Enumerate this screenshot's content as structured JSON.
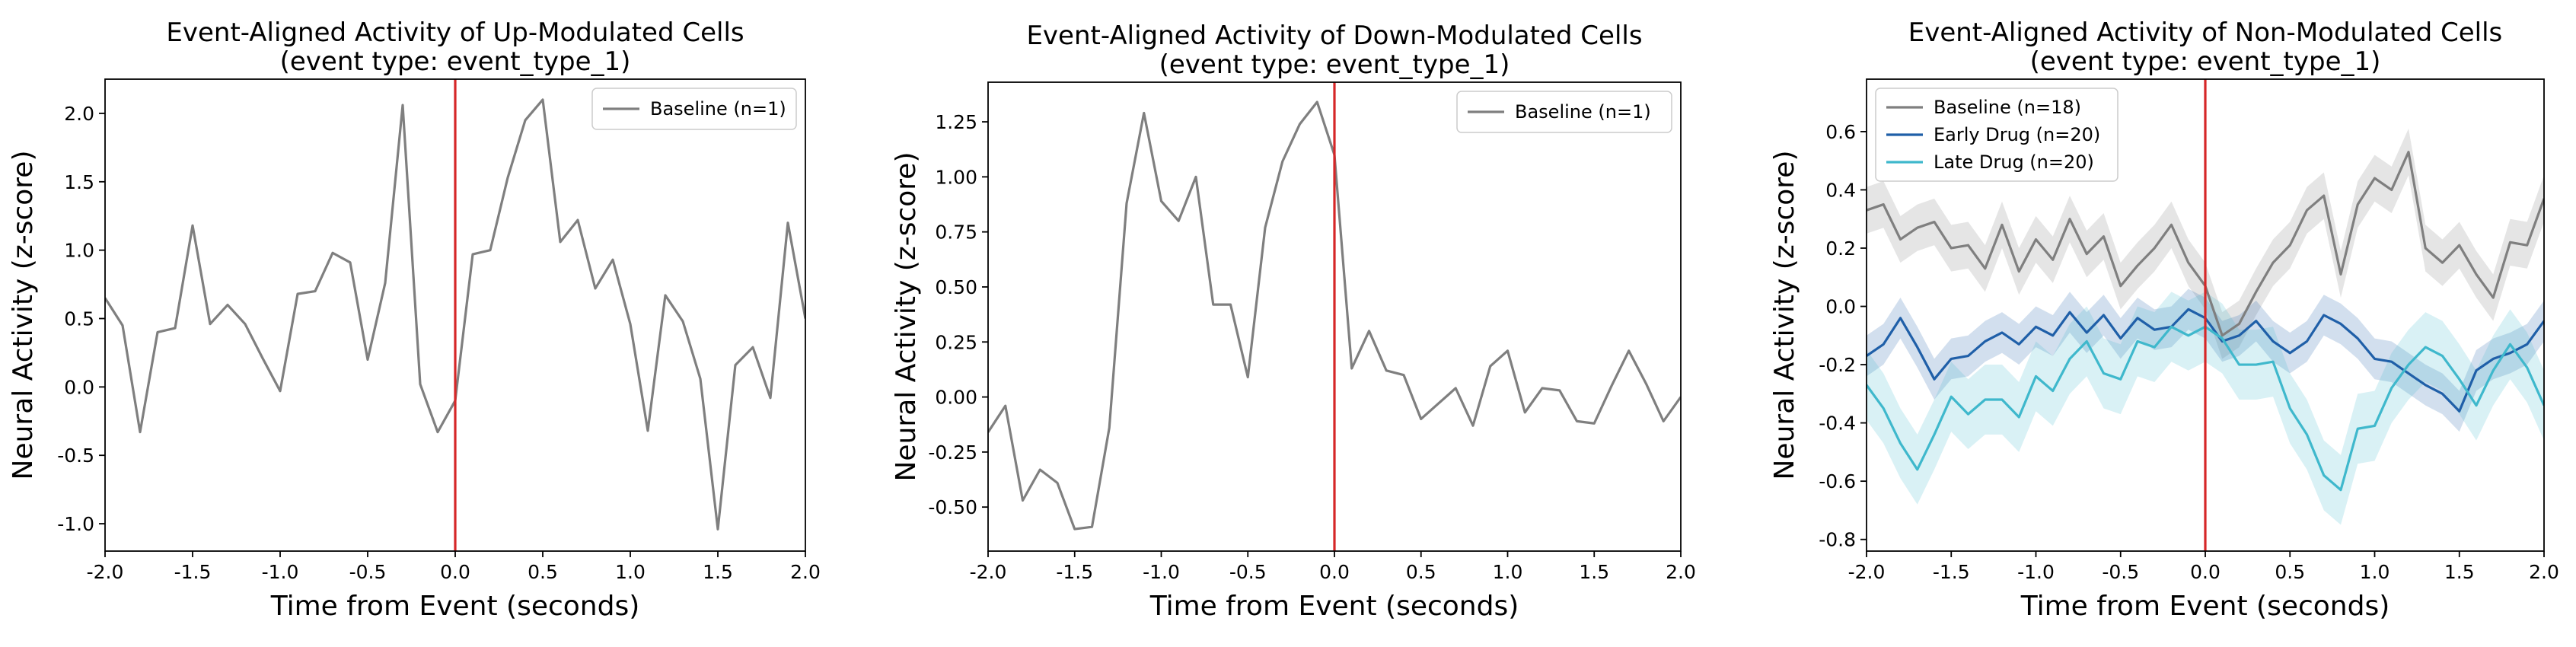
{
  "chart_data": [
    {
      "type": "line",
      "title": "Event-Aligned Activity of Up-Modulated Cells",
      "subtitle": "(event type: event_type_1)",
      "xlabel": "Time from Event (seconds)",
      "ylabel": "Neural Activity (z-score)",
      "xlim": [
        -2.0,
        2.0
      ],
      "ylim": [
        -1.2,
        2.25
      ],
      "xticks": [
        "-2.0",
        "-1.5",
        "-1.0",
        "-0.5",
        "0.0",
        "0.5",
        "1.0",
        "1.5",
        "2.0"
      ],
      "xtick_values": [
        -2.0,
        -1.5,
        -1.0,
        -0.5,
        0.0,
        0.5,
        1.0,
        1.5,
        2.0
      ],
      "yticks": [
        "-1.0",
        "-0.5",
        "0.0",
        "0.5",
        "1.0",
        "1.5",
        "2.0"
      ],
      "ytick_values": [
        -1.0,
        -0.5,
        0.0,
        0.5,
        1.0,
        1.5,
        2.0
      ],
      "grid": false,
      "legend_position": "top-right",
      "event_line": {
        "x": 0.0,
        "color": "#d62728"
      },
      "series": [
        {
          "name": "Baseline (n=1)",
          "color": "#7f7f7f",
          "x": [
            -2.0,
            -1.9,
            -1.8,
            -1.7,
            -1.6,
            -1.5,
            -1.4,
            -1.3,
            -1.2,
            -1.1,
            -1.0,
            -0.9,
            -0.8,
            -0.7,
            -0.6,
            -0.5,
            -0.4,
            -0.3,
            -0.2,
            -0.1,
            0.0,
            0.1,
            0.2,
            0.3,
            0.4,
            0.5,
            0.6,
            0.7,
            0.8,
            0.9,
            1.0,
            1.1,
            1.2,
            1.3,
            1.4,
            1.5,
            1.6,
            1.7,
            1.8,
            1.9,
            2.0
          ],
          "y": [
            0.65,
            0.45,
            -0.33,
            0.4,
            0.43,
            1.18,
            0.46,
            0.6,
            0.46,
            0.21,
            -0.03,
            0.68,
            0.7,
            0.98,
            0.91,
            0.2,
            0.76,
            2.06,
            0.02,
            -0.33,
            -0.1,
            0.97,
            1.0,
            1.53,
            1.95,
            2.1,
            1.06,
            1.22,
            0.72,
            0.93,
            0.46,
            -0.32,
            0.67,
            0.48,
            0.06,
            -1.04,
            0.16,
            0.29,
            -0.08,
            1.2,
            0.5
          ]
        }
      ]
    },
    {
      "type": "line",
      "title": "Event-Aligned Activity of Down-Modulated Cells",
      "subtitle": "(event type: event_type_1)",
      "xlabel": "Time from Event (seconds)",
      "ylabel": "Neural Activity (z-score)",
      "xlim": [
        -2.0,
        2.0
      ],
      "ylim": [
        -0.7,
        1.43
      ],
      "xticks": [
        "-2.0",
        "-1.5",
        "-1.0",
        "-0.5",
        "0.0",
        "0.5",
        "1.0",
        "1.5",
        "2.0"
      ],
      "xtick_values": [
        -2.0,
        -1.5,
        -1.0,
        -0.5,
        0.0,
        0.5,
        1.0,
        1.5,
        2.0
      ],
      "yticks": [
        "-0.50",
        "-0.25",
        "0.00",
        "0.25",
        "0.50",
        "0.75",
        "1.00",
        "1.25"
      ],
      "ytick_values": [
        -0.5,
        -0.25,
        0.0,
        0.25,
        0.5,
        0.75,
        1.0,
        1.25
      ],
      "grid": false,
      "legend_position": "top-right",
      "event_line": {
        "x": 0.0,
        "color": "#d62728"
      },
      "series": [
        {
          "name": "Baseline (n=1)",
          "color": "#7f7f7f",
          "x": [
            -2.0,
            -1.9,
            -1.8,
            -1.7,
            -1.6,
            -1.5,
            -1.4,
            -1.3,
            -1.2,
            -1.1,
            -1.0,
            -0.9,
            -0.8,
            -0.7,
            -0.6,
            -0.5,
            -0.4,
            -0.3,
            -0.2,
            -0.1,
            0.0,
            0.1,
            0.2,
            0.3,
            0.4,
            0.5,
            0.6,
            0.7,
            0.8,
            0.9,
            1.0,
            1.1,
            1.2,
            1.3,
            1.4,
            1.5,
            1.6,
            1.7,
            1.8,
            1.9,
            2.0
          ],
          "y": [
            -0.16,
            -0.04,
            -0.47,
            -0.33,
            -0.39,
            -0.6,
            -0.59,
            -0.14,
            0.88,
            1.29,
            0.89,
            0.8,
            1.0,
            0.42,
            0.42,
            0.09,
            0.77,
            1.07,
            1.24,
            1.34,
            1.1,
            0.13,
            0.3,
            0.12,
            0.1,
            -0.1,
            -0.03,
            0.04,
            -0.13,
            0.14,
            0.21,
            -0.07,
            0.04,
            0.03,
            -0.11,
            -0.12,
            0.05,
            0.21,
            0.06,
            -0.11,
            0.0
          ]
        }
      ]
    },
    {
      "type": "line",
      "title": "Event-Aligned Activity of Non-Modulated Cells",
      "subtitle": "(event type: event_type_1)",
      "xlabel": "Time from Event (seconds)",
      "ylabel": "Neural Activity (z-score)",
      "xlim": [
        -2.0,
        2.0
      ],
      "ylim": [
        -0.84,
        0.78
      ],
      "xticks": [
        "-2.0",
        "-1.5",
        "-1.0",
        "-0.5",
        "0.0",
        "0.5",
        "1.0",
        "1.5",
        "2.0"
      ],
      "xtick_values": [
        -2.0,
        -1.5,
        -1.0,
        -0.5,
        0.0,
        0.5,
        1.0,
        1.5,
        2.0
      ],
      "yticks": [
        "-0.8",
        "-0.6",
        "-0.4",
        "-0.2",
        "0.0",
        "0.2",
        "0.4",
        "0.6"
      ],
      "ytick_values": [
        -0.8,
        -0.6,
        -0.4,
        -0.2,
        0.0,
        0.2,
        0.4,
        0.6
      ],
      "grid": false,
      "legend_position": "top-left",
      "event_line": {
        "x": 0.0,
        "color": "#d62728"
      },
      "series": [
        {
          "name": "Baseline (n=18)",
          "color": "#7f7f7f",
          "x": [
            -2.0,
            -1.9,
            -1.8,
            -1.7,
            -1.6,
            -1.5,
            -1.4,
            -1.3,
            -1.2,
            -1.1,
            -1.0,
            -0.9,
            -0.8,
            -0.7,
            -0.6,
            -0.5,
            -0.4,
            -0.3,
            -0.2,
            -0.1,
            0.0,
            0.1,
            0.2,
            0.3,
            0.4,
            0.5,
            0.6,
            0.7,
            0.8,
            0.9,
            1.0,
            1.1,
            1.2,
            1.3,
            1.4,
            1.5,
            1.6,
            1.7,
            1.8,
            1.9,
            2.0
          ],
          "y": [
            0.33,
            0.35,
            0.23,
            0.27,
            0.29,
            0.2,
            0.21,
            0.13,
            0.28,
            0.12,
            0.23,
            0.16,
            0.3,
            0.18,
            0.24,
            0.07,
            0.14,
            0.2,
            0.28,
            0.15,
            0.07,
            -0.1,
            -0.06,
            0.05,
            0.15,
            0.21,
            0.33,
            0.38,
            0.11,
            0.35,
            0.44,
            0.4,
            0.53,
            0.2,
            0.15,
            0.21,
            0.11,
            0.03,
            0.22,
            0.21,
            0.37
          ],
          "lower": [
            0.25,
            0.27,
            0.15,
            0.19,
            0.21,
            0.12,
            0.13,
            0.05,
            0.2,
            0.04,
            0.15,
            0.08,
            0.22,
            0.1,
            0.16,
            -0.01,
            0.06,
            0.12,
            0.2,
            0.07,
            -0.01,
            -0.18,
            -0.14,
            -0.03,
            0.07,
            0.13,
            0.25,
            0.3,
            0.03,
            0.27,
            0.36,
            0.32,
            0.45,
            0.12,
            0.07,
            0.13,
            0.03,
            -0.05,
            0.14,
            0.13,
            0.29
          ],
          "upper": [
            0.41,
            0.43,
            0.31,
            0.35,
            0.37,
            0.28,
            0.29,
            0.21,
            0.36,
            0.2,
            0.31,
            0.24,
            0.38,
            0.26,
            0.32,
            0.15,
            0.22,
            0.28,
            0.36,
            0.23,
            0.15,
            -0.02,
            0.02,
            0.13,
            0.23,
            0.29,
            0.41,
            0.46,
            0.19,
            0.43,
            0.52,
            0.48,
            0.61,
            0.28,
            0.23,
            0.29,
            0.19,
            0.11,
            0.3,
            0.29,
            0.45
          ]
        },
        {
          "name": "Early Drug (n=20)",
          "color": "#1f5fa8",
          "x": [
            -2.0,
            -1.9,
            -1.8,
            -1.7,
            -1.6,
            -1.5,
            -1.4,
            -1.3,
            -1.2,
            -1.1,
            -1.0,
            -0.9,
            -0.8,
            -0.7,
            -0.6,
            -0.5,
            -0.4,
            -0.3,
            -0.2,
            -0.1,
            0.0,
            0.1,
            0.2,
            0.3,
            0.4,
            0.5,
            0.6,
            0.7,
            0.8,
            0.9,
            1.0,
            1.1,
            1.2,
            1.3,
            1.4,
            1.5,
            1.6,
            1.7,
            1.8,
            1.9,
            2.0
          ],
          "y": [
            -0.17,
            -0.13,
            -0.04,
            -0.14,
            -0.25,
            -0.18,
            -0.17,
            -0.12,
            -0.09,
            -0.13,
            -0.07,
            -0.1,
            -0.02,
            -0.09,
            -0.03,
            -0.11,
            -0.04,
            -0.08,
            -0.07,
            -0.01,
            -0.04,
            -0.12,
            -0.1,
            -0.05,
            -0.12,
            -0.16,
            -0.12,
            -0.03,
            -0.06,
            -0.11,
            -0.18,
            -0.19,
            -0.23,
            -0.27,
            -0.3,
            -0.36,
            -0.22,
            -0.18,
            -0.16,
            -0.13,
            -0.05
          ],
          "lower": [
            -0.24,
            -0.2,
            -0.11,
            -0.21,
            -0.32,
            -0.25,
            -0.24,
            -0.19,
            -0.16,
            -0.2,
            -0.14,
            -0.17,
            -0.09,
            -0.16,
            -0.1,
            -0.18,
            -0.11,
            -0.15,
            -0.14,
            -0.08,
            -0.11,
            -0.19,
            -0.17,
            -0.12,
            -0.19,
            -0.23,
            -0.19,
            -0.1,
            -0.13,
            -0.18,
            -0.25,
            -0.26,
            -0.3,
            -0.34,
            -0.37,
            -0.43,
            -0.29,
            -0.25,
            -0.23,
            -0.2,
            -0.12
          ],
          "upper": [
            -0.1,
            -0.06,
            0.03,
            -0.07,
            -0.18,
            -0.11,
            -0.1,
            -0.05,
            -0.02,
            -0.06,
            0.0,
            -0.03,
            0.05,
            -0.02,
            0.04,
            -0.04,
            0.03,
            -0.01,
            0.0,
            0.06,
            0.03,
            -0.05,
            -0.03,
            0.02,
            -0.05,
            -0.09,
            -0.05,
            0.04,
            0.01,
            -0.04,
            -0.11,
            -0.12,
            -0.16,
            -0.2,
            -0.23,
            -0.29,
            -0.15,
            -0.11,
            -0.09,
            -0.06,
            0.02
          ]
        },
        {
          "name": "Late Drug (n=20)",
          "color": "#3fb8cc",
          "x": [
            -2.0,
            -1.9,
            -1.8,
            -1.7,
            -1.6,
            -1.5,
            -1.4,
            -1.3,
            -1.2,
            -1.1,
            -1.0,
            -0.9,
            -0.8,
            -0.7,
            -0.6,
            -0.5,
            -0.4,
            -0.3,
            -0.2,
            -0.1,
            0.0,
            0.1,
            0.2,
            0.3,
            0.4,
            0.5,
            0.6,
            0.7,
            0.8,
            0.9,
            1.0,
            1.1,
            1.2,
            1.3,
            1.4,
            1.5,
            1.6,
            1.7,
            1.8,
            1.9,
            2.0
          ],
          "y": [
            -0.27,
            -0.35,
            -0.47,
            -0.56,
            -0.44,
            -0.31,
            -0.37,
            -0.32,
            -0.32,
            -0.38,
            -0.24,
            -0.29,
            -0.18,
            -0.12,
            -0.23,
            -0.25,
            -0.12,
            -0.14,
            -0.07,
            -0.1,
            -0.07,
            -0.11,
            -0.2,
            -0.2,
            -0.19,
            -0.35,
            -0.44,
            -0.58,
            -0.63,
            -0.42,
            -0.41,
            -0.28,
            -0.2,
            -0.14,
            -0.17,
            -0.25,
            -0.34,
            -0.22,
            -0.13,
            -0.21,
            -0.34
          ],
          "lower": [
            -0.39,
            -0.47,
            -0.59,
            -0.68,
            -0.56,
            -0.43,
            -0.49,
            -0.44,
            -0.44,
            -0.5,
            -0.36,
            -0.41,
            -0.3,
            -0.24,
            -0.35,
            -0.37,
            -0.24,
            -0.26,
            -0.19,
            -0.22,
            -0.19,
            -0.23,
            -0.32,
            -0.32,
            -0.31,
            -0.47,
            -0.56,
            -0.7,
            -0.75,
            -0.54,
            -0.53,
            -0.4,
            -0.32,
            -0.26,
            -0.29,
            -0.37,
            -0.46,
            -0.34,
            -0.25,
            -0.33,
            -0.46
          ],
          "upper": [
            -0.15,
            -0.23,
            -0.35,
            -0.44,
            -0.32,
            -0.19,
            -0.25,
            -0.2,
            -0.2,
            -0.26,
            -0.12,
            -0.17,
            -0.06,
            0.0,
            -0.11,
            -0.13,
            0.0,
            -0.02,
            0.05,
            0.02,
            0.05,
            0.01,
            -0.08,
            -0.08,
            -0.07,
            -0.23,
            -0.32,
            -0.46,
            -0.51,
            -0.3,
            -0.29,
            -0.16,
            -0.08,
            -0.02,
            -0.05,
            -0.13,
            -0.22,
            -0.1,
            -0.01,
            -0.09,
            -0.22
          ]
        }
      ]
    }
  ]
}
